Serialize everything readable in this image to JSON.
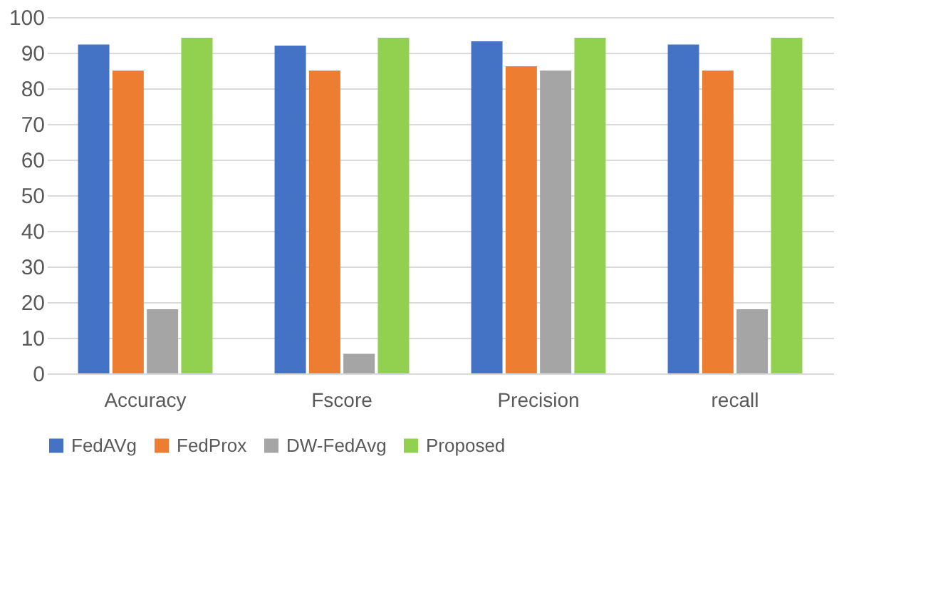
{
  "chart_data": {
    "type": "bar",
    "categories": [
      "Accuracy",
      "Fscore",
      "Precision",
      "recall"
    ],
    "series": [
      {
        "name": "FedAVg",
        "color": "#4472c4",
        "values": [
          92.3,
          92,
          93.2,
          92.3
        ]
      },
      {
        "name": "FedProx",
        "color": "#ed7d31",
        "values": [
          85,
          85,
          86.2,
          85
        ]
      },
      {
        "name": "DW-FedAvg",
        "color": "#a5a5a5",
        "values": [
          18,
          5.5,
          85,
          18
        ]
      },
      {
        "name": "Proposed",
        "color": "#92d050",
        "values": [
          94.2,
          94.2,
          94.2,
          94.2
        ]
      }
    ],
    "ylim": [
      0,
      100
    ],
    "yticks": [
      0,
      10,
      20,
      30,
      40,
      50,
      60,
      70,
      80,
      90,
      100
    ],
    "grid": "y",
    "legend": "bottom"
  }
}
